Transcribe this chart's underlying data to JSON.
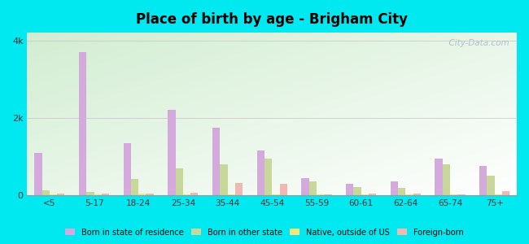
{
  "title": "Place of birth by age - Brigham City",
  "categories": [
    "<5",
    "5-17",
    "18-24",
    "25-34",
    "35-44",
    "45-54",
    "55-59",
    "60-61",
    "62-64",
    "65-74",
    "75+"
  ],
  "series": {
    "Born in state of residence": [
      1100,
      3700,
      1350,
      2200,
      1750,
      1150,
      450,
      300,
      350,
      950,
      750
    ],
    "Born in other state": [
      120,
      80,
      430,
      700,
      800,
      950,
      350,
      220,
      200,
      800,
      500
    ],
    "Native, outside of US": [
      30,
      30,
      50,
      30,
      30,
      30,
      20,
      30,
      30,
      30,
      30
    ],
    "Foreign-born": [
      40,
      40,
      50,
      60,
      320,
      290,
      30,
      40,
      40,
      30,
      100
    ]
  },
  "colors": {
    "Born in state of residence": "#d4aadd",
    "Born in other state": "#c8d89a",
    "Native, outside of US": "#f0e87a",
    "Foreign-born": "#f0b8b0"
  },
  "ylim": [
    0,
    4200
  ],
  "yticks": [
    0,
    2000,
    4000
  ],
  "ytick_labels": [
    "0",
    "2k",
    "4k"
  ],
  "figure_bg": "#00e8f0",
  "plot_bg_top": "#d4ecd4",
  "plot_bg_bottom": "#eefaee",
  "bar_width": 0.17,
  "watermark": "  City-Data.com"
}
